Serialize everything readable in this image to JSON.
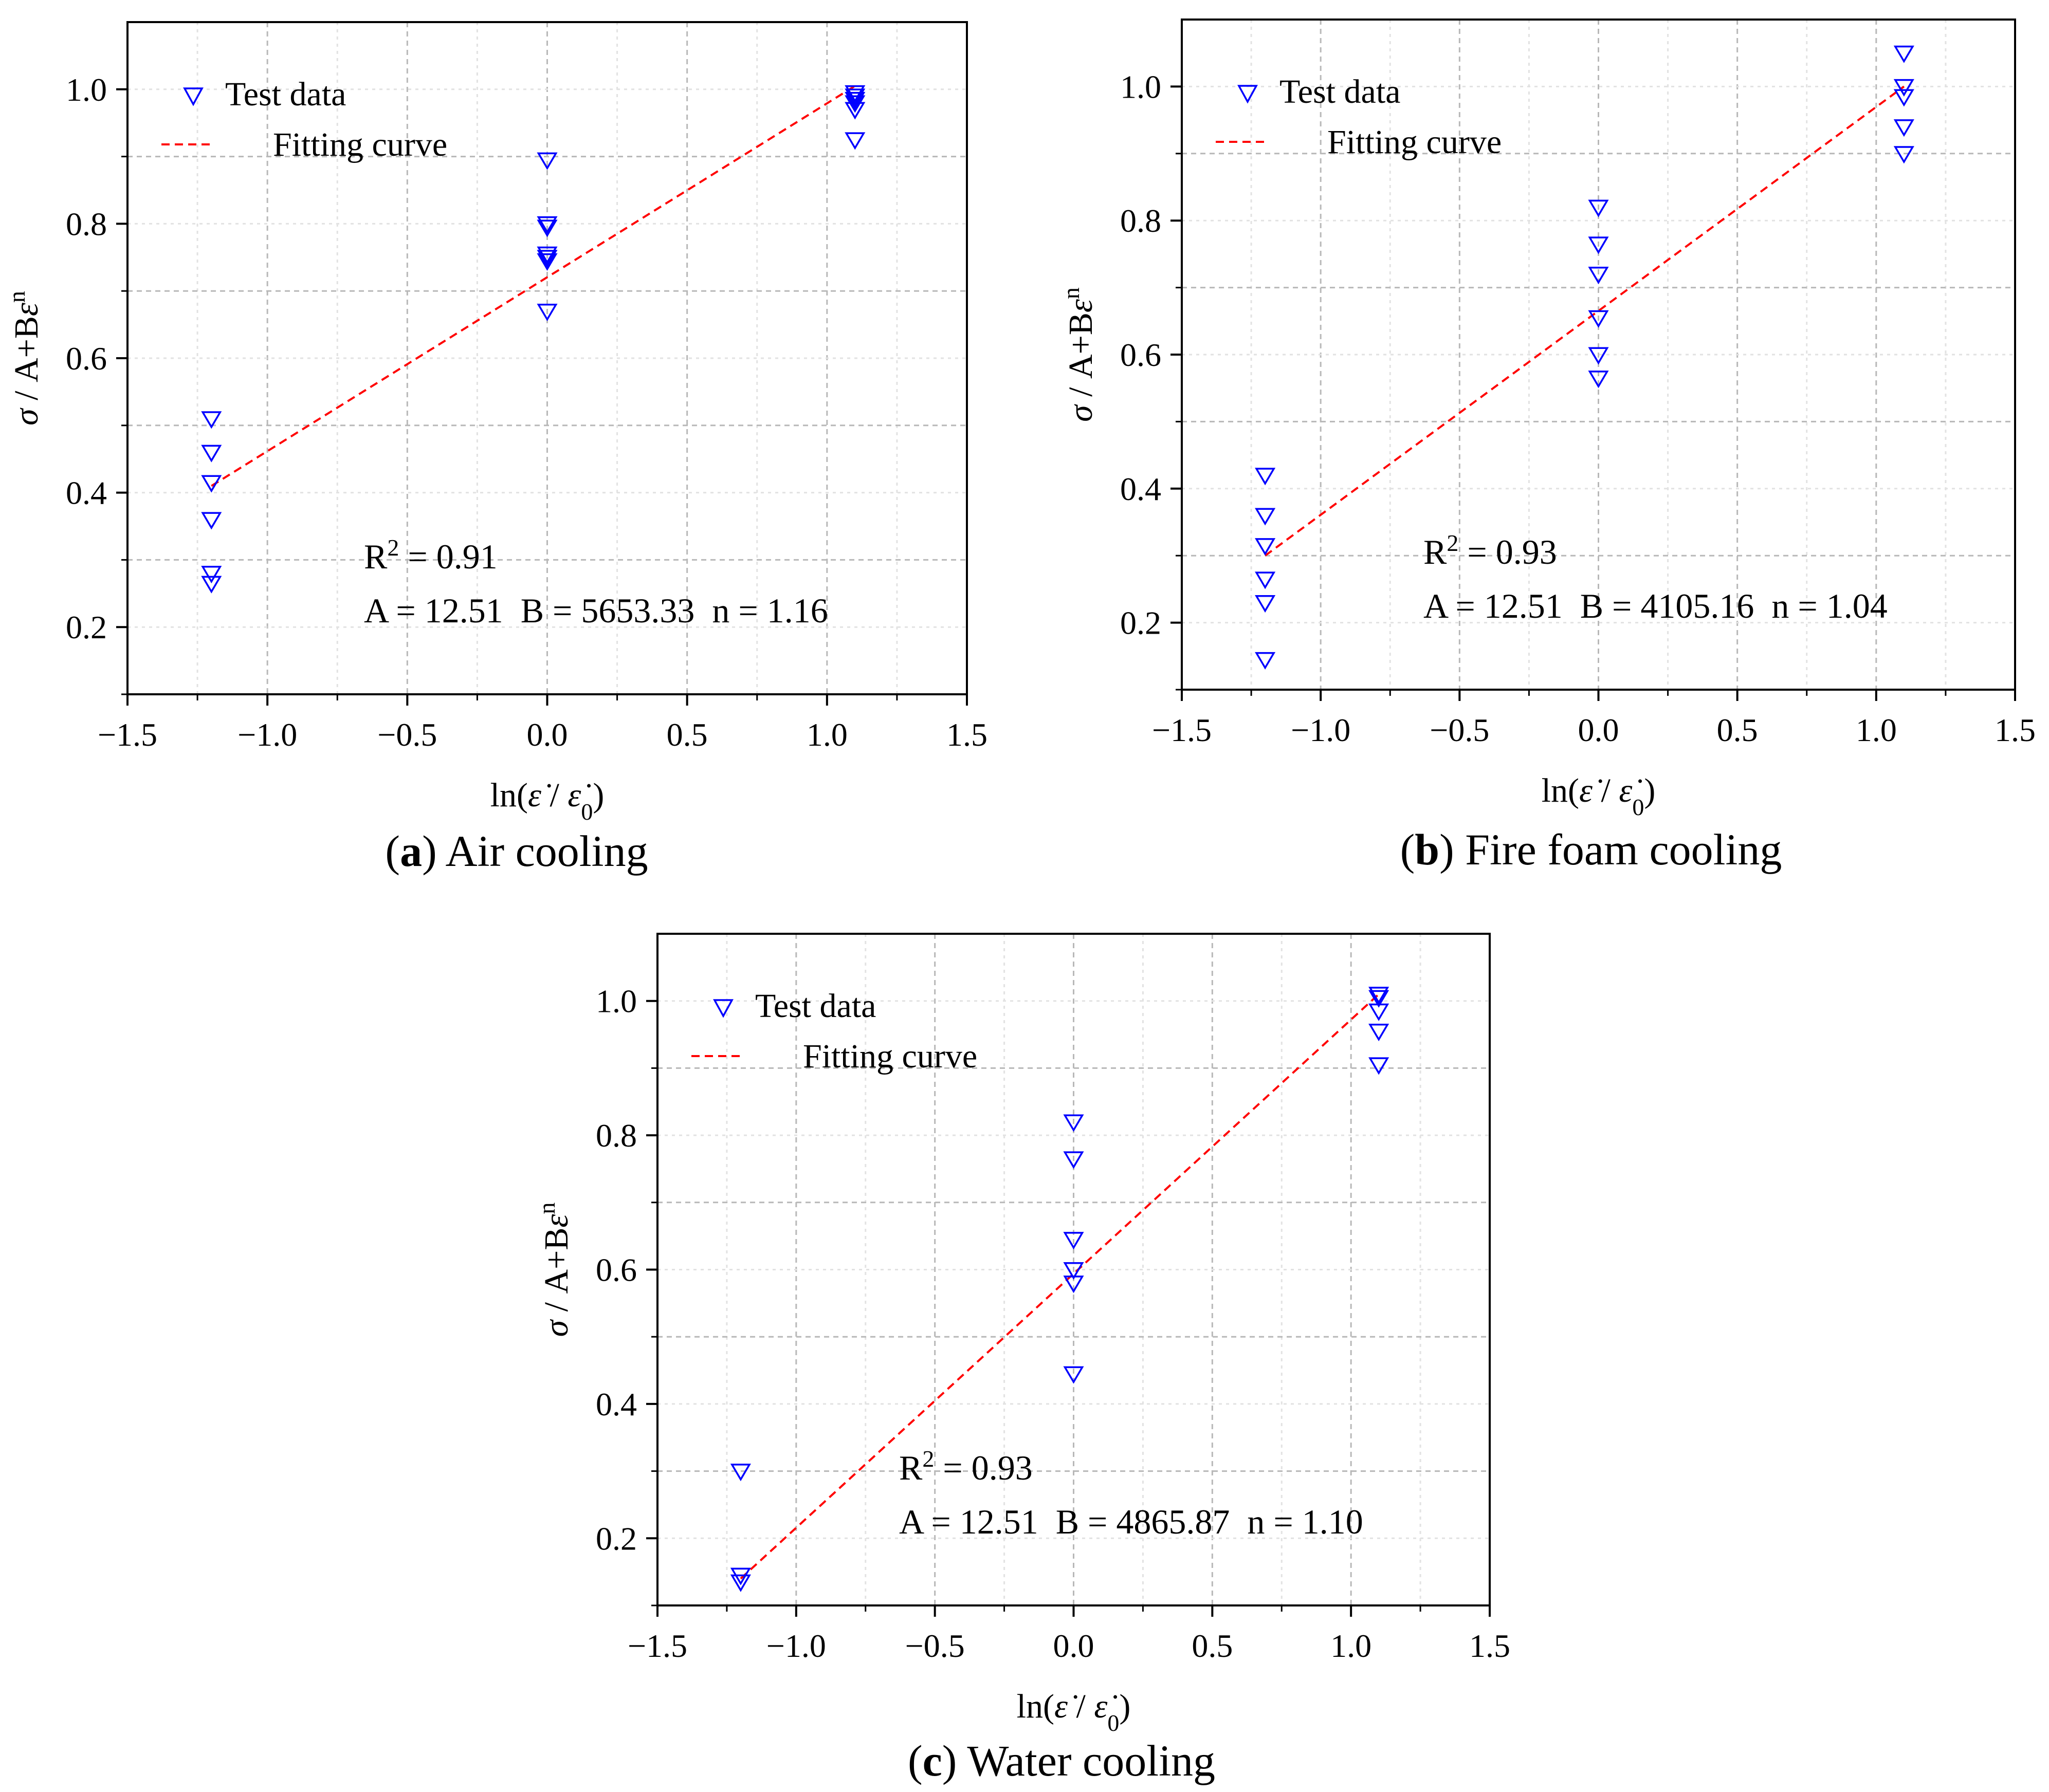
{
  "chart_data": [
    {
      "type": "scatter",
      "caption": {
        "letter": "a",
        "text": "Air cooling"
      },
      "xlabel": {
        "prefix": "ln(",
        "num": "ε̇",
        "sep": " / ",
        "den": "ε̇",
        "den_sub": "0",
        "suffix": ")"
      },
      "ylabel": {
        "sigma": "σ",
        "rest": " / A+B",
        "eps": "ε",
        "sup": "n"
      },
      "xlim": [
        -1.5,
        1.5
      ],
      "ylim": [
        0.1,
        1.1
      ],
      "xticks": [
        "−1.5",
        "−1.0",
        "−0.5",
        "0.0",
        "0.5",
        "1.0",
        "1.5"
      ],
      "yticks": [
        "0.2",
        "0.4",
        "0.6",
        "0.8",
        "1.0"
      ],
      "legend": {
        "test": "Test data",
        "fit": "Fitting curve"
      },
      "stats": {
        "r2_label": "R",
        "r2_sup": "2",
        "r2_value": " = 0.91",
        "params": "A = 12.51  B = 5653.33  n = 1.16"
      },
      "test_data": {
        "x": [
          -1.2,
          -1.2,
          -1.2,
          -1.2,
          -1.2,
          -1.2,
          0.0,
          0.0,
          0.0,
          0.0,
          0.0,
          0.0,
          0.0,
          1.1,
          1.1,
          1.1,
          1.1,
          1.1,
          1.1
        ],
        "y": [
          0.51,
          0.46,
          0.415,
          0.36,
          0.28,
          0.265,
          0.895,
          0.8,
          0.795,
          0.755,
          0.745,
          0.67,
          0.75,
          0.995,
          0.99,
          0.985,
          0.98,
          0.97,
          0.925
        ]
      },
      "fit": {
        "x": [
          -1.2,
          1.1
        ],
        "y": [
          0.41,
          1.005
        ]
      },
      "colors": {
        "markers": "#0000ff",
        "fit": "#ff0000"
      }
    },
    {
      "type": "scatter",
      "caption": {
        "letter": "b",
        "text": "Fire foam cooling"
      },
      "xlabel": {
        "prefix": "ln(",
        "num": "ε̇",
        "sep": " / ",
        "den": "ε̇",
        "den_sub": "0",
        "suffix": ")"
      },
      "ylabel": {
        "sigma": "σ",
        "rest": " / A+B",
        "eps": "ε",
        "sup": "n"
      },
      "xlim": [
        -1.5,
        1.5
      ],
      "ylim": [
        0.1,
        1.1
      ],
      "xticks": [
        "−1.5",
        "−1.0",
        "−0.5",
        "0.0",
        "0.5",
        "1.0",
        "1.5"
      ],
      "yticks": [
        "0.2",
        "0.4",
        "0.6",
        "0.8",
        "1.0"
      ],
      "legend": {
        "test": "Test data",
        "fit": "Fitting curve"
      },
      "stats": {
        "r2_label": "R",
        "r2_sup": "2",
        "r2_value": " = 0.93",
        "params": "A = 12.51  B = 4105.16  n = 1.04"
      },
      "test_data": {
        "x": [
          -1.2,
          -1.2,
          -1.2,
          -1.2,
          -1.2,
          -1.2,
          0.0,
          0.0,
          0.0,
          0.0,
          0.0,
          0.0,
          1.1,
          1.1,
          1.1,
          1.1,
          1.1
        ],
        "y": [
          0.42,
          0.36,
          0.315,
          0.265,
          0.23,
          0.145,
          0.82,
          0.765,
          0.72,
          0.655,
          0.6,
          0.565,
          1.05,
          1.0,
          0.985,
          0.94,
          0.9
        ]
      },
      "fit": {
        "x": [
          -1.2,
          1.1
        ],
        "y": [
          0.3,
          1.0
        ]
      },
      "colors": {
        "markers": "#0000ff",
        "fit": "#ff0000"
      }
    },
    {
      "type": "scatter",
      "caption": {
        "letter": "c",
        "text": "Water cooling"
      },
      "xlabel": {
        "prefix": "ln(",
        "num": "ε̇",
        "sep": " / ",
        "den": "ε̇",
        "den_sub": "0",
        "suffix": ")"
      },
      "ylabel": {
        "sigma": "σ",
        "rest": " / A+B",
        "eps": "ε",
        "sup": "n"
      },
      "xlim": [
        -1.5,
        1.5
      ],
      "ylim": [
        0.1,
        1.1
      ],
      "xticks": [
        "−1.5",
        "−1.0",
        "−0.5",
        "0.0",
        "0.5",
        "1.0",
        "1.5"
      ],
      "yticks": [
        "0.2",
        "0.4",
        "0.6",
        "0.8",
        "1.0"
      ],
      "legend": {
        "test": "Test data",
        "fit": "Fitting curve"
      },
      "stats": {
        "r2_label": "R",
        "r2_sup": "2",
        "r2_value": " = 0.93",
        "params": "A = 12.51  B = 4865.87  n = 1.10"
      },
      "test_data": {
        "x": [
          -1.2,
          -1.2,
          -1.2,
          0.0,
          0.0,
          0.0,
          0.0,
          0.0,
          0.0,
          1.1,
          1.1,
          1.1,
          1.1,
          1.1
        ],
        "y": [
          0.3,
          0.145,
          0.135,
          0.82,
          0.765,
          0.645,
          0.6,
          0.58,
          0.445,
          1.01,
          1.005,
          0.985,
          0.955,
          0.905
        ]
      },
      "fit": {
        "x": [
          -1.2,
          1.1
        ],
        "y": [
          0.14,
          1.01
        ]
      },
      "colors": {
        "markers": "#0000ff",
        "fit": "#ff0000"
      }
    }
  ]
}
